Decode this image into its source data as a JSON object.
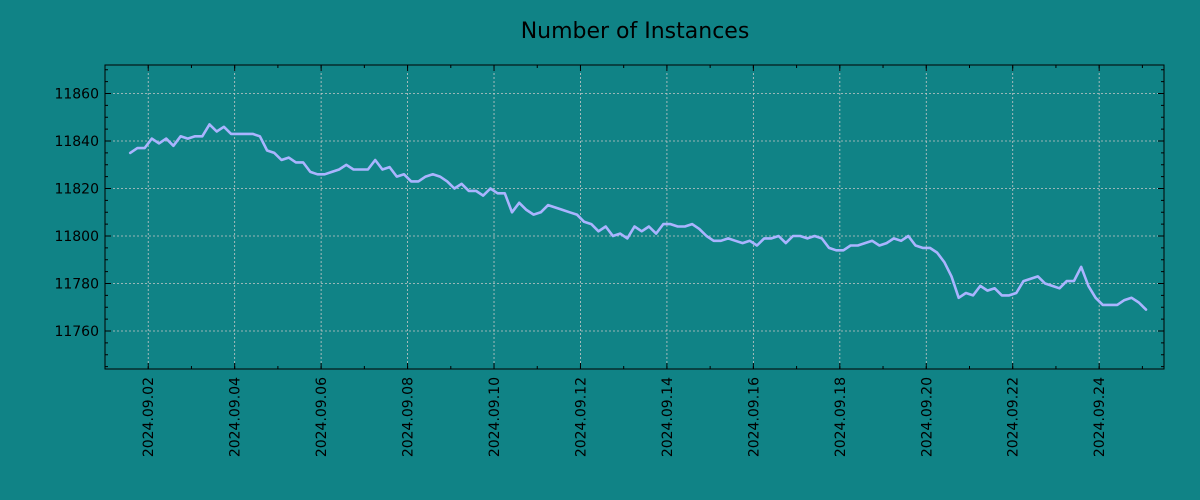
{
  "chart_data": {
    "type": "line",
    "title": "Number of Instances",
    "xlabel": "",
    "ylabel": "",
    "x_range": [
      "2024-09-01",
      "2024-09-25"
    ],
    "ylim": [
      11744,
      11872
    ],
    "x_ticks": [
      "2024.09.02",
      "2024.09.04",
      "2024.09.06",
      "2024.09.08",
      "2024.09.10",
      "2024.09.12",
      "2024.09.14",
      "2024.09.16",
      "2024.09.18",
      "2024.09.20",
      "2024.09.22",
      "2024.09.24"
    ],
    "y_ticks": [
      11760,
      11780,
      11800,
      11820,
      11840,
      11860
    ],
    "grid": true,
    "line_color": "#aab4ff",
    "background_color": "#108386",
    "series": [
      {
        "points": [
          [
            "2024-09-01 14:00",
            11835
          ],
          [
            "2024-09-01 18:00",
            11837
          ],
          [
            "2024-09-01 22:00",
            11837
          ],
          [
            "2024-09-02 02:00",
            11841
          ],
          [
            "2024-09-02 06:00",
            11839
          ],
          [
            "2024-09-02 10:00",
            11841
          ],
          [
            "2024-09-02 14:00",
            11838
          ],
          [
            "2024-09-02 18:00",
            11842
          ],
          [
            "2024-09-02 22:00",
            11841
          ],
          [
            "2024-09-03 02:00",
            11842
          ],
          [
            "2024-09-03 06:00",
            11842
          ],
          [
            "2024-09-03 10:00",
            11847
          ],
          [
            "2024-09-03 14:00",
            11844
          ],
          [
            "2024-09-03 18:00",
            11846
          ],
          [
            "2024-09-03 22:00",
            11843
          ],
          [
            "2024-09-04 02:00",
            11843
          ],
          [
            "2024-09-04 06:00",
            11843
          ],
          [
            "2024-09-04 10:00",
            11843
          ],
          [
            "2024-09-04 14:00",
            11842
          ],
          [
            "2024-09-04 18:00",
            11836
          ],
          [
            "2024-09-04 22:00",
            11835
          ],
          [
            "2024-09-05 02:00",
            11832
          ],
          [
            "2024-09-05 06:00",
            11833
          ],
          [
            "2024-09-05 10:00",
            11831
          ],
          [
            "2024-09-05 14:00",
            11831
          ],
          [
            "2024-09-05 18:00",
            11827
          ],
          [
            "2024-09-05 22:00",
            11826
          ],
          [
            "2024-09-06 02:00",
            11826
          ],
          [
            "2024-09-06 06:00",
            11827
          ],
          [
            "2024-09-06 10:00",
            11828
          ],
          [
            "2024-09-06 14:00",
            11830
          ],
          [
            "2024-09-06 18:00",
            11828
          ],
          [
            "2024-09-06 22:00",
            11828
          ],
          [
            "2024-09-07 02:00",
            11828
          ],
          [
            "2024-09-07 06:00",
            11832
          ],
          [
            "2024-09-07 10:00",
            11828
          ],
          [
            "2024-09-07 14:00",
            11829
          ],
          [
            "2024-09-07 18:00",
            11825
          ],
          [
            "2024-09-07 22:00",
            11826
          ],
          [
            "2024-09-08 02:00",
            11823
          ],
          [
            "2024-09-08 06:00",
            11823
          ],
          [
            "2024-09-08 10:00",
            11825
          ],
          [
            "2024-09-08 14:00",
            11826
          ],
          [
            "2024-09-08 18:00",
            11825
          ],
          [
            "2024-09-08 22:00",
            11823
          ],
          [
            "2024-09-09 02:00",
            11820
          ],
          [
            "2024-09-09 06:00",
            11822
          ],
          [
            "2024-09-09 10:00",
            11819
          ],
          [
            "2024-09-09 14:00",
            11819
          ],
          [
            "2024-09-09 18:00",
            11817
          ],
          [
            "2024-09-09 22:00",
            11820
          ],
          [
            "2024-09-10 02:00",
            11818
          ],
          [
            "2024-09-10 06:00",
            11818
          ],
          [
            "2024-09-10 10:00",
            11810
          ],
          [
            "2024-09-10 14:00",
            11814
          ],
          [
            "2024-09-10 18:00",
            11811
          ],
          [
            "2024-09-10 22:00",
            11809
          ],
          [
            "2024-09-11 02:00",
            11810
          ],
          [
            "2024-09-11 06:00",
            11813
          ],
          [
            "2024-09-11 10:00",
            11812
          ],
          [
            "2024-09-11 14:00",
            11811
          ],
          [
            "2024-09-11 18:00",
            11810
          ],
          [
            "2024-09-11 22:00",
            11809
          ],
          [
            "2024-09-12 02:00",
            11806
          ],
          [
            "2024-09-12 06:00",
            11805
          ],
          [
            "2024-09-12 10:00",
            11802
          ],
          [
            "2024-09-12 14:00",
            11804
          ],
          [
            "2024-09-12 18:00",
            11800
          ],
          [
            "2024-09-12 22:00",
            11801
          ],
          [
            "2024-09-13 02:00",
            11799
          ],
          [
            "2024-09-13 06:00",
            11804
          ],
          [
            "2024-09-13 10:00",
            11802
          ],
          [
            "2024-09-13 14:00",
            11804
          ],
          [
            "2024-09-13 18:00",
            11801
          ],
          [
            "2024-09-13 22:00",
            11805
          ],
          [
            "2024-09-14 02:00",
            11805
          ],
          [
            "2024-09-14 06:00",
            11804
          ],
          [
            "2024-09-14 10:00",
            11804
          ],
          [
            "2024-09-14 14:00",
            11805
          ],
          [
            "2024-09-14 18:00",
            11803
          ],
          [
            "2024-09-14 22:00",
            11800
          ],
          [
            "2024-09-15 02:00",
            11798
          ],
          [
            "2024-09-15 06:00",
            11798
          ],
          [
            "2024-09-15 10:00",
            11799
          ],
          [
            "2024-09-15 14:00",
            11798
          ],
          [
            "2024-09-15 18:00",
            11797
          ],
          [
            "2024-09-15 22:00",
            11798
          ],
          [
            "2024-09-16 02:00",
            11796
          ],
          [
            "2024-09-16 06:00",
            11799
          ],
          [
            "2024-09-16 10:00",
            11799
          ],
          [
            "2024-09-16 14:00",
            11800
          ],
          [
            "2024-09-16 18:00",
            11797
          ],
          [
            "2024-09-16 22:00",
            11800
          ],
          [
            "2024-09-17 02:00",
            11800
          ],
          [
            "2024-09-17 06:00",
            11799
          ],
          [
            "2024-09-17 10:00",
            11800
          ],
          [
            "2024-09-17 14:00",
            11799
          ],
          [
            "2024-09-17 18:00",
            11795
          ],
          [
            "2024-09-17 22:00",
            11794
          ],
          [
            "2024-09-18 02:00",
            11794
          ],
          [
            "2024-09-18 06:00",
            11796
          ],
          [
            "2024-09-18 10:00",
            11796
          ],
          [
            "2024-09-18 14:00",
            11797
          ],
          [
            "2024-09-18 18:00",
            11798
          ],
          [
            "2024-09-18 22:00",
            11796
          ],
          [
            "2024-09-19 02:00",
            11797
          ],
          [
            "2024-09-19 06:00",
            11799
          ],
          [
            "2024-09-19 10:00",
            11798
          ],
          [
            "2024-09-19 14:00",
            11800
          ],
          [
            "2024-09-19 18:00",
            11796
          ],
          [
            "2024-09-19 22:00",
            11795
          ],
          [
            "2024-09-20 02:00",
            11795
          ],
          [
            "2024-09-20 06:00",
            11793
          ],
          [
            "2024-09-20 10:00",
            11789
          ],
          [
            "2024-09-20 14:00",
            11783
          ],
          [
            "2024-09-20 18:00",
            11774
          ],
          [
            "2024-09-20 22:00",
            11776
          ],
          [
            "2024-09-21 02:00",
            11775
          ],
          [
            "2024-09-21 06:00",
            11779
          ],
          [
            "2024-09-21 10:00",
            11777
          ],
          [
            "2024-09-21 14:00",
            11778
          ],
          [
            "2024-09-21 18:00",
            11775
          ],
          [
            "2024-09-21 22:00",
            11775
          ],
          [
            "2024-09-22 02:00",
            11776
          ],
          [
            "2024-09-22 06:00",
            11781
          ],
          [
            "2024-09-22 10:00",
            11782
          ],
          [
            "2024-09-22 14:00",
            11783
          ],
          [
            "2024-09-22 18:00",
            11780
          ],
          [
            "2024-09-22 22:00",
            11779
          ],
          [
            "2024-09-23 02:00",
            11778
          ],
          [
            "2024-09-23 06:00",
            11781
          ],
          [
            "2024-09-23 10:00",
            11781
          ],
          [
            "2024-09-23 14:00",
            11787
          ],
          [
            "2024-09-23 18:00",
            11779
          ],
          [
            "2024-09-23 22:00",
            11774
          ],
          [
            "2024-09-24 02:00",
            11771
          ],
          [
            "2024-09-24 06:00",
            11771
          ],
          [
            "2024-09-24 10:00",
            11771
          ],
          [
            "2024-09-24 14:00",
            11773
          ],
          [
            "2024-09-24 18:00",
            11774
          ],
          [
            "2024-09-24 22:00",
            11772
          ],
          [
            "2024-09-25 02:00",
            11769
          ]
        ]
      }
    ]
  }
}
